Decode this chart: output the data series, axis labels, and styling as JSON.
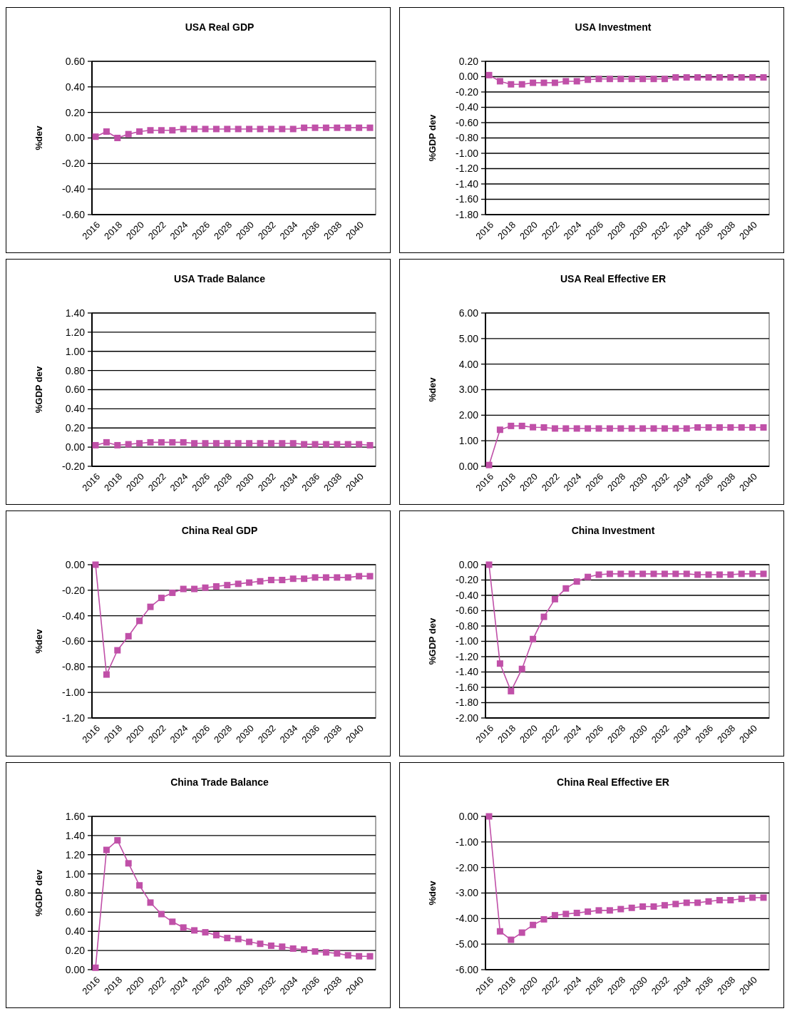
{
  "chart_data": [
    {
      "type": "line",
      "title": "USA Real GDP",
      "ylabel": "%dev",
      "categories": [
        "2016",
        null,
        "2018",
        null,
        "2020",
        null,
        "2022",
        null,
        "2024",
        null,
        "2026",
        null,
        "2028",
        null,
        "2030",
        null,
        "2032",
        null,
        "2034",
        null,
        "2036",
        null,
        "2038",
        null,
        "2040",
        null
      ],
      "marker": "square",
      "grid": "y",
      "ylim": [
        -0.6,
        0.6
      ],
      "yticks": [
        {
          "value": -0.6,
          "label": "-0.60"
        },
        {
          "value": -0.4,
          "label": "-0.40"
        },
        {
          "value": -0.2,
          "label": "-0.20"
        },
        {
          "value": 0,
          "label": "0.00"
        },
        {
          "value": 0.2,
          "label": "0.20"
        },
        {
          "value": 0.4,
          "label": "0.40"
        },
        {
          "value": 0.6,
          "label": "0.60"
        }
      ],
      "series": [
        {
          "color": "#c050a8",
          "values": [
            0.01,
            0.05,
            0.0,
            0.03,
            0.05,
            0.06,
            0.06,
            0.06,
            0.07,
            0.07,
            0.07,
            0.07,
            0.07,
            0.07,
            0.07,
            0.07,
            0.07,
            0.07,
            0.07,
            0.08,
            0.08,
            0.08,
            0.08,
            0.08,
            0.08,
            0.08
          ]
        }
      ]
    },
    {
      "type": "line",
      "title": "USA Investment",
      "ylabel": "%GDP dev",
      "categories": [
        "2016",
        null,
        "2018",
        null,
        "2020",
        null,
        "2022",
        null,
        "2024",
        null,
        "2026",
        null,
        "2028",
        null,
        "2030",
        null,
        "2032",
        null,
        "2034",
        null,
        "2036",
        null,
        "2038",
        null,
        "2040",
        null
      ],
      "marker": "square",
      "grid": "y",
      "ylim": [
        -1.8,
        0.2
      ],
      "yticks": [
        {
          "value": -1.8,
          "label": "-1.80"
        },
        {
          "value": -1.6,
          "label": "-1.60"
        },
        {
          "value": -1.4,
          "label": "-1.40"
        },
        {
          "value": -1.2,
          "label": "-1.20"
        },
        {
          "value": -1.0,
          "label": "-1.00"
        },
        {
          "value": -0.8,
          "label": "-0.80"
        },
        {
          "value": -0.6,
          "label": "-0.60"
        },
        {
          "value": -0.4,
          "label": "-0.40"
        },
        {
          "value": -0.2,
          "label": "-0.20"
        },
        {
          "value": 0,
          "label": "0.00"
        },
        {
          "value": 0.2,
          "label": "0.20"
        }
      ],
      "series": [
        {
          "color": "#c050a8",
          "values": [
            0.02,
            -0.06,
            -0.1,
            -0.1,
            -0.08,
            -0.08,
            -0.08,
            -0.06,
            -0.06,
            -0.04,
            -0.03,
            -0.03,
            -0.03,
            -0.03,
            -0.03,
            -0.03,
            -0.03,
            -0.01,
            -0.01,
            -0.01,
            -0.01,
            -0.01,
            -0.01,
            -0.01,
            -0.01,
            -0.01
          ]
        }
      ]
    },
    {
      "type": "line",
      "title": "USA Trade Balance",
      "ylabel": "%GDP dev",
      "categories": [
        "2016",
        null,
        "2018",
        null,
        "2020",
        null,
        "2022",
        null,
        "2024",
        null,
        "2026",
        null,
        "2028",
        null,
        "2030",
        null,
        "2032",
        null,
        "2034",
        null,
        "2036",
        null,
        "2038",
        null,
        "2040",
        null
      ],
      "marker": "square",
      "grid": "y",
      "ylim": [
        -0.2,
        1.4
      ],
      "yticks": [
        {
          "value": -0.2,
          "label": "-0.20"
        },
        {
          "value": 0,
          "label": "0.00"
        },
        {
          "value": 0.2,
          "label": "0.20"
        },
        {
          "value": 0.4,
          "label": "0.40"
        },
        {
          "value": 0.6,
          "label": "0.60"
        },
        {
          "value": 0.8,
          "label": "0.80"
        },
        {
          "value": 1.0,
          "label": "1.00"
        },
        {
          "value": 1.2,
          "label": "1.20"
        },
        {
          "value": 1.4,
          "label": "1.40"
        }
      ],
      "series": [
        {
          "color": "#c050a8",
          "values": [
            0.02,
            0.05,
            0.02,
            0.03,
            0.04,
            0.05,
            0.05,
            0.05,
            0.05,
            0.04,
            0.04,
            0.04,
            0.04,
            0.04,
            0.04,
            0.04,
            0.04,
            0.04,
            0.04,
            0.03,
            0.03,
            0.03,
            0.03,
            0.03,
            0.03,
            0.02
          ]
        }
      ]
    },
    {
      "type": "line",
      "title": "USA Real  Effective  ER",
      "ylabel": "%dev",
      "categories": [
        "2016",
        null,
        "2018",
        null,
        "2020",
        null,
        "2022",
        null,
        "2024",
        null,
        "2026",
        null,
        "2028",
        null,
        "2030",
        null,
        "2032",
        null,
        "2034",
        null,
        "2036",
        null,
        "2038",
        null,
        "2040",
        null
      ],
      "marker": "square",
      "grid": "y",
      "ylim": [
        0,
        6
      ],
      "yticks": [
        {
          "value": 0,
          "label": "0.00"
        },
        {
          "value": 1,
          "label": "1.00"
        },
        {
          "value": 2,
          "label": "2.00"
        },
        {
          "value": 3,
          "label": "3.00"
        },
        {
          "value": 4,
          "label": "4.00"
        },
        {
          "value": 5,
          "label": "5.00"
        },
        {
          "value": 6,
          "label": "6.00"
        }
      ],
      "series": [
        {
          "color": "#c050a8",
          "values": [
            0.05,
            1.43,
            1.58,
            1.58,
            1.53,
            1.52,
            1.48,
            1.48,
            1.48,
            1.48,
            1.48,
            1.48,
            1.48,
            1.48,
            1.48,
            1.48,
            1.48,
            1.48,
            1.48,
            1.52,
            1.52,
            1.52,
            1.52,
            1.52,
            1.52,
            1.52
          ]
        }
      ]
    },
    {
      "type": "line",
      "title": "China Real  GDP",
      "ylabel": "%dev",
      "categories": [
        "2016",
        null,
        "2018",
        null,
        "2020",
        null,
        "2022",
        null,
        "2024",
        null,
        "2026",
        null,
        "2028",
        null,
        "2030",
        null,
        "2032",
        null,
        "2034",
        null,
        "2036",
        null,
        "2038",
        null,
        "2040",
        null
      ],
      "marker": "square",
      "grid": "y",
      "ylim": [
        -1.2,
        0
      ],
      "yticks": [
        {
          "value": -1.2,
          "label": "-1.20"
        },
        {
          "value": -1.0,
          "label": "-1.00"
        },
        {
          "value": -0.8,
          "label": "-0.80"
        },
        {
          "value": -0.6,
          "label": "-0.60"
        },
        {
          "value": -0.4,
          "label": "-0.40"
        },
        {
          "value": -0.2,
          "label": "-0.20"
        },
        {
          "value": 0,
          "label": "0.00"
        }
      ],
      "series": [
        {
          "color": "#c050a8",
          "values": [
            0,
            -0.86,
            -0.67,
            -0.56,
            -0.44,
            -0.33,
            -0.26,
            -0.22,
            -0.19,
            -0.19,
            -0.18,
            -0.17,
            -0.16,
            -0.15,
            -0.14,
            -0.13,
            -0.12,
            -0.12,
            -0.11,
            -0.11,
            -0.1,
            -0.1,
            -0.1,
            -0.1,
            -0.09,
            -0.09
          ]
        }
      ]
    },
    {
      "type": "line",
      "title": "China Investment",
      "ylabel": "%GDP dev",
      "categories": [
        "2016",
        null,
        "2018",
        null,
        "2020",
        null,
        "2022",
        null,
        "2024",
        null,
        "2026",
        null,
        "2028",
        null,
        "2030",
        null,
        "2032",
        null,
        "2034",
        null,
        "2036",
        null,
        "2038",
        null,
        "2040",
        null
      ],
      "marker": "square",
      "grid": "y",
      "ylim": [
        -2,
        0
      ],
      "yticks": [
        {
          "value": -2,
          "label": "-2.00"
        },
        {
          "value": -1.8,
          "label": "-1.80"
        },
        {
          "value": -1.6,
          "label": "-1.60"
        },
        {
          "value": -1.4,
          "label": "-1.40"
        },
        {
          "value": -1.2,
          "label": "-1.20"
        },
        {
          "value": -1.0,
          "label": "-1.00"
        },
        {
          "value": -0.8,
          "label": "-0.80"
        },
        {
          "value": -0.6,
          "label": "-0.60"
        },
        {
          "value": -0.4,
          "label": "-0.40"
        },
        {
          "value": -0.2,
          "label": "-0.20"
        },
        {
          "value": 0,
          "label": "0.00"
        }
      ],
      "series": [
        {
          "color": "#c050a8",
          "values": [
            0,
            -1.29,
            -1.65,
            -1.36,
            -0.97,
            -0.68,
            -0.45,
            -0.31,
            -0.22,
            -0.16,
            -0.13,
            -0.12,
            -0.12,
            -0.12,
            -0.12,
            -0.12,
            -0.12,
            -0.12,
            -0.12,
            -0.13,
            -0.13,
            -0.13,
            -0.13,
            -0.12,
            -0.12,
            -0.12
          ]
        }
      ]
    },
    {
      "type": "line",
      "title": "China Trade Balance",
      "ylabel": "%GDP dev",
      "categories": [
        "2016",
        null,
        "2018",
        null,
        "2020",
        null,
        "2022",
        null,
        "2024",
        null,
        "2026",
        null,
        "2028",
        null,
        "2030",
        null,
        "2032",
        null,
        "2034",
        null,
        "2036",
        null,
        "2038",
        null,
        "2040",
        null
      ],
      "marker": "square",
      "grid": "y",
      "ylim": [
        0,
        1.6
      ],
      "yticks": [
        {
          "value": 0,
          "label": "0.00"
        },
        {
          "value": 0.2,
          "label": "0.20"
        },
        {
          "value": 0.4,
          "label": "0.40"
        },
        {
          "value": 0.6,
          "label": "0.60"
        },
        {
          "value": 0.8,
          "label": "0.80"
        },
        {
          "value": 1.0,
          "label": "1.00"
        },
        {
          "value": 1.2,
          "label": "1.20"
        },
        {
          "value": 1.4,
          "label": "1.40"
        },
        {
          "value": 1.6,
          "label": "1.60"
        }
      ],
      "series": [
        {
          "color": "#c050a8",
          "values": [
            0.02,
            1.25,
            1.35,
            1.11,
            0.88,
            0.7,
            0.58,
            0.5,
            0.44,
            0.41,
            0.39,
            0.36,
            0.33,
            0.32,
            0.29,
            0.27,
            0.25,
            0.24,
            0.22,
            0.21,
            0.19,
            0.18,
            0.17,
            0.15,
            0.14,
            0.14
          ]
        }
      ]
    },
    {
      "type": "line",
      "title": "China Real  Effective  ER",
      "ylabel": "%dev",
      "categories": [
        "2016",
        null,
        "2018",
        null,
        "2020",
        null,
        "2022",
        null,
        "2024",
        null,
        "2026",
        null,
        "2028",
        null,
        "2030",
        null,
        "2032",
        null,
        "2034",
        null,
        "2036",
        null,
        "2038",
        null,
        "2040",
        null
      ],
      "marker": "square",
      "grid": "y",
      "ylim": [
        -6,
        0
      ],
      "yticks": [
        {
          "value": -6,
          "label": "-6.00"
        },
        {
          "value": -5,
          "label": "-5.00"
        },
        {
          "value": -4,
          "label": "-4.00"
        },
        {
          "value": -3,
          "label": "-3.00"
        },
        {
          "value": -2,
          "label": "-2.00"
        },
        {
          "value": -1,
          "label": "-1.00"
        },
        {
          "value": 0,
          "label": "0.00"
        }
      ],
      "series": [
        {
          "color": "#c050a8",
          "values": [
            0,
            -4.5,
            -4.83,
            -4.55,
            -4.25,
            -4.03,
            -3.87,
            -3.82,
            -3.78,
            -3.73,
            -3.68,
            -3.68,
            -3.63,
            -3.58,
            -3.53,
            -3.53,
            -3.48,
            -3.43,
            -3.38,
            -3.38,
            -3.33,
            -3.28,
            -3.28,
            -3.23,
            -3.18,
            -3.18
          ]
        }
      ]
    }
  ]
}
